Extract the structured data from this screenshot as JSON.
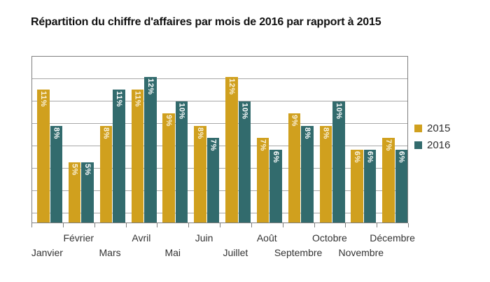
{
  "title": "Répartition du chiffre d'affaires par mois de 2016 par rapport à 2015",
  "chart_data": {
    "type": "bar",
    "title": "Répartition du chiffre d'affaires par mois de 2016 par rapport à 2015",
    "categories": [
      "Janvier",
      "Février",
      "Mars",
      "Avril",
      "Mai",
      "Juin",
      "Juillet",
      "Août",
      "Septembre",
      "Octobre",
      "Novembre",
      "Décembre"
    ],
    "series": [
      {
        "name": "2015",
        "color": "#d0a01e",
        "values": [
          11,
          5,
          8,
          11,
          9,
          8,
          12,
          7,
          9,
          8,
          6,
          7
        ]
      },
      {
        "name": "2016",
        "color": "#326b6d",
        "values": [
          8,
          5,
          11,
          12,
          10,
          7,
          10,
          6,
          8,
          10,
          6,
          6
        ]
      }
    ],
    "value_suffix": "%",
    "xlabel": "",
    "ylabel": "",
    "ylim": [
      0,
      13.7
    ],
    "y_axis_labels_visible": false,
    "grid": "horizontal",
    "legend_position": "right-middle",
    "bar_labels": "inside-top-rotated-90deg",
    "x_label_layout": "staggered-two-rows"
  },
  "legend": {
    "items": [
      {
        "label": "2015",
        "color": "#d0a01e"
      },
      {
        "label": "2016",
        "color": "#326b6d"
      }
    ]
  },
  "colors": {
    "background": "#ffffff",
    "title_text": "#121212",
    "axis_text": "#333333",
    "plot_border": "#7f7f7f",
    "grid_line": "#a8a8a8",
    "bar_2015": "#d0a01e",
    "bar_2016": "#326b6d",
    "bar_label_on_2015": "#fbf3dd",
    "bar_label_on_2016": "#ffffff"
  }
}
